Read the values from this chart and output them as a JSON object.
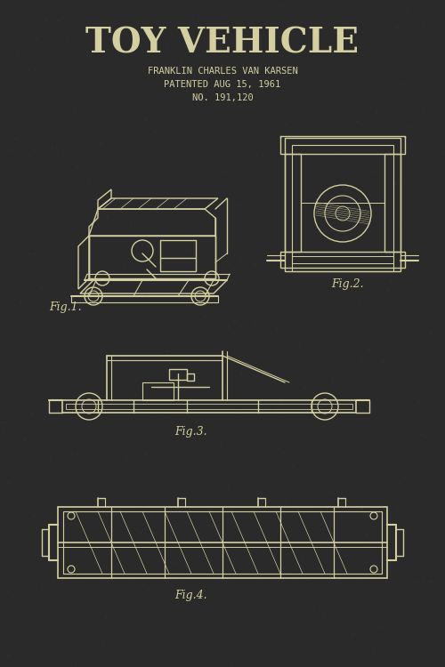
{
  "bg_color": "#2a2a2a",
  "line_color": "#d4cfa0",
  "title": "TOY VEHICLE",
  "inventor": "FRANKLIN CHARLES VAN KARSEN",
  "patent_date": "PATENTED AUG 15, 1961",
  "patent_no": "NO. 191,120",
  "fig1_label": "Fig.1.",
  "fig2_label": "Fig.2.",
  "fig3_label": "Fig.3.",
  "fig4_label": "Fig.4.",
  "title_fontsize": 28,
  "subtitle_fontsize": 7.5,
  "fig_label_fontsize": 9,
  "title_color": "#d4cfa0",
  "line_width": 1.0
}
